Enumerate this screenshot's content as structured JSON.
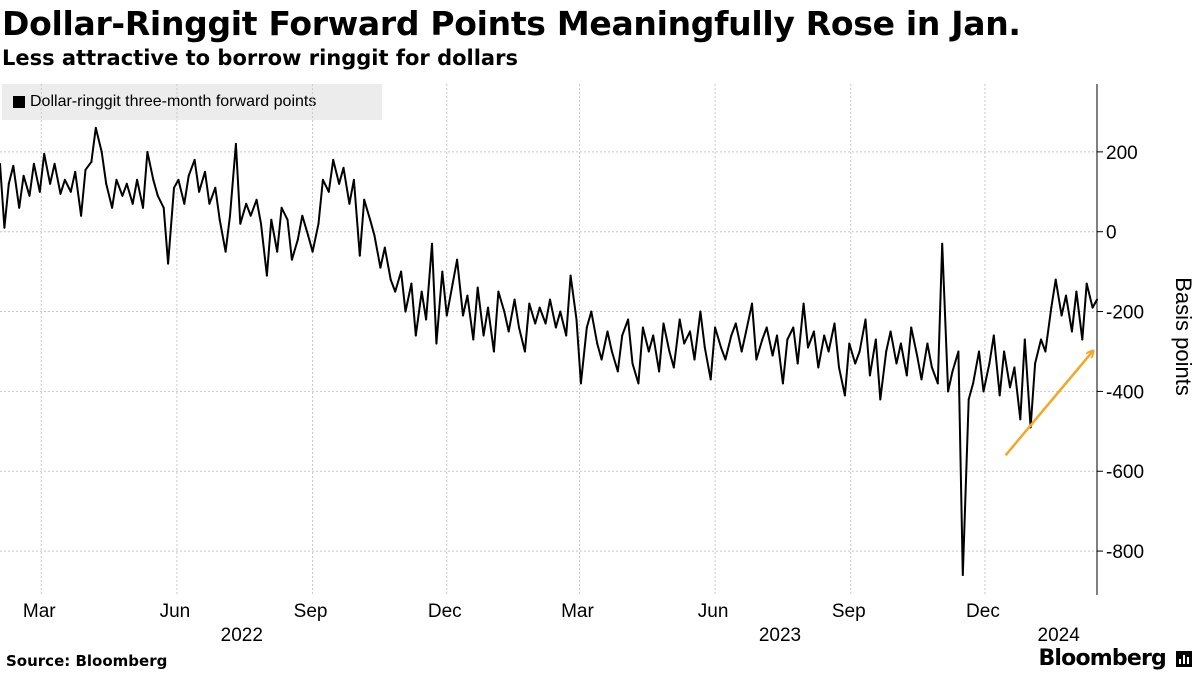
{
  "header": {
    "title": "Dollar-Ringgit Forward Points Meaningfully Rose in Jan.",
    "subtitle": "Less attractive to borrow ringgit for dollars"
  },
  "footer": {
    "source": "Source: Bloomberg",
    "brand": "Bloomberg"
  },
  "chart_data": {
    "type": "line",
    "title": "Dollar-Ringgit Forward Points Meaningfully Rose in Jan.",
    "subtitle": "Less attractive to borrow ringgit for dollars",
    "legend": {
      "placement": "top-left",
      "entries": [
        "Dollar-ringgit three-month forward points"
      ]
    },
    "ylabel": "Basis points",
    "ylim": [
      -910,
      370
    ],
    "yticks": [
      200,
      0,
      -200,
      -400,
      -600,
      -800
    ],
    "ytick_labels": [
      "200",
      "0",
      "-200",
      "-400",
      "-600",
      "-800"
    ],
    "y_axis_side": "right",
    "grid": true,
    "xlim": [
      "2022-02-01",
      "2024-02-15"
    ],
    "xticks": [
      {
        "date": "2022-03-01",
        "label": "Mar"
      },
      {
        "date": "2022-06-01",
        "label": "Jun"
      },
      {
        "date": "2022-09-01",
        "label": "Sep"
      },
      {
        "date": "2022-12-01",
        "label": "Dec"
      },
      {
        "date": "2023-03-01",
        "label": "Mar"
      },
      {
        "date": "2023-06-01",
        "label": "Jun"
      },
      {
        "date": "2023-09-01",
        "label": "Sep"
      },
      {
        "date": "2023-12-01",
        "label": "Dec"
      }
    ],
    "year_labels": [
      {
        "date": "2022-07-15",
        "label": "2022"
      },
      {
        "date": "2023-07-15",
        "label": "2023"
      },
      {
        "date": "2024-01-20",
        "label": "2024"
      }
    ],
    "annotations": [
      {
        "type": "arrow",
        "color": "#f5a623",
        "from": {
          "date": "2023-12-15",
          "value": -560
        },
        "to": {
          "date": "2024-02-12",
          "value": -300
        }
      }
    ],
    "series": [
      {
        "name": "Dollar-ringgit three-month forward points",
        "color": "#000000",
        "points": [
          [
            "2022-02-01",
            170
          ],
          [
            "2022-02-04",
            10
          ],
          [
            "2022-02-07",
            120
          ],
          [
            "2022-02-10",
            165
          ],
          [
            "2022-02-14",
            60
          ],
          [
            "2022-02-17",
            140
          ],
          [
            "2022-02-21",
            90
          ],
          [
            "2022-02-24",
            170
          ],
          [
            "2022-02-28",
            100
          ],
          [
            "2022-03-03",
            195
          ],
          [
            "2022-03-07",
            120
          ],
          [
            "2022-03-10",
            170
          ],
          [
            "2022-03-14",
            95
          ],
          [
            "2022-03-17",
            130
          ],
          [
            "2022-03-21",
            100
          ],
          [
            "2022-03-24",
            150
          ],
          [
            "2022-03-28",
            40
          ],
          [
            "2022-03-31",
            155
          ],
          [
            "2022-04-04",
            175
          ],
          [
            "2022-04-07",
            260
          ],
          [
            "2022-04-11",
            200
          ],
          [
            "2022-04-14",
            120
          ],
          [
            "2022-04-18",
            60
          ],
          [
            "2022-04-21",
            130
          ],
          [
            "2022-04-25",
            90
          ],
          [
            "2022-04-28",
            120
          ],
          [
            "2022-05-02",
            70
          ],
          [
            "2022-05-05",
            130
          ],
          [
            "2022-05-09",
            60
          ],
          [
            "2022-05-12",
            200
          ],
          [
            "2022-05-16",
            130
          ],
          [
            "2022-05-19",
            90
          ],
          [
            "2022-05-23",
            60
          ],
          [
            "2022-05-26",
            -80
          ],
          [
            "2022-05-30",
            110
          ],
          [
            "2022-06-02",
            130
          ],
          [
            "2022-06-06",
            70
          ],
          [
            "2022-06-09",
            140
          ],
          [
            "2022-06-13",
            180
          ],
          [
            "2022-06-16",
            100
          ],
          [
            "2022-06-20",
            150
          ],
          [
            "2022-06-23",
            70
          ],
          [
            "2022-06-27",
            110
          ],
          [
            "2022-06-30",
            30
          ],
          [
            "2022-07-04",
            -50
          ],
          [
            "2022-07-07",
            40
          ],
          [
            "2022-07-11",
            220
          ],
          [
            "2022-07-14",
            20
          ],
          [
            "2022-07-18",
            70
          ],
          [
            "2022-07-21",
            40
          ],
          [
            "2022-07-25",
            80
          ],
          [
            "2022-07-28",
            20
          ],
          [
            "2022-08-01",
            -110
          ],
          [
            "2022-08-04",
            30
          ],
          [
            "2022-08-08",
            -50
          ],
          [
            "2022-08-11",
            60
          ],
          [
            "2022-08-15",
            30
          ],
          [
            "2022-08-18",
            -70
          ],
          [
            "2022-08-22",
            -20
          ],
          [
            "2022-08-25",
            40
          ],
          [
            "2022-08-29",
            -10
          ],
          [
            "2022-09-01",
            -50
          ],
          [
            "2022-09-05",
            20
          ],
          [
            "2022-09-08",
            130
          ],
          [
            "2022-09-12",
            100
          ],
          [
            "2022-09-15",
            180
          ],
          [
            "2022-09-19",
            120
          ],
          [
            "2022-09-22",
            160
          ],
          [
            "2022-09-26",
            70
          ],
          [
            "2022-09-29",
            130
          ],
          [
            "2022-10-03",
            -60
          ],
          [
            "2022-10-06",
            80
          ],
          [
            "2022-10-10",
            30
          ],
          [
            "2022-10-13",
            -10
          ],
          [
            "2022-10-17",
            -90
          ],
          [
            "2022-10-20",
            -40
          ],
          [
            "2022-10-24",
            -120
          ],
          [
            "2022-10-27",
            -150
          ],
          [
            "2022-10-31",
            -100
          ],
          [
            "2022-11-03",
            -200
          ],
          [
            "2022-11-07",
            -130
          ],
          [
            "2022-11-10",
            -260
          ],
          [
            "2022-11-14",
            -150
          ],
          [
            "2022-11-17",
            -220
          ],
          [
            "2022-11-21",
            -30
          ],
          [
            "2022-11-24",
            -280
          ],
          [
            "2022-11-28",
            -100
          ],
          [
            "2022-12-01",
            -210
          ],
          [
            "2022-12-05",
            -130
          ],
          [
            "2022-12-08",
            -70
          ],
          [
            "2022-12-12",
            -210
          ],
          [
            "2022-12-15",
            -160
          ],
          [
            "2022-12-19",
            -270
          ],
          [
            "2022-12-22",
            -140
          ],
          [
            "2022-12-26",
            -260
          ],
          [
            "2022-12-29",
            -190
          ],
          [
            "2023-01-02",
            -300
          ],
          [
            "2023-01-05",
            -150
          ],
          [
            "2023-01-09",
            -200
          ],
          [
            "2023-01-12",
            -250
          ],
          [
            "2023-01-16",
            -170
          ],
          [
            "2023-01-19",
            -240
          ],
          [
            "2023-01-23",
            -300
          ],
          [
            "2023-01-26",
            -180
          ],
          [
            "2023-01-30",
            -230
          ],
          [
            "2023-02-02",
            -190
          ],
          [
            "2023-02-06",
            -230
          ],
          [
            "2023-02-09",
            -170
          ],
          [
            "2023-02-13",
            -240
          ],
          [
            "2023-02-16",
            -200
          ],
          [
            "2023-02-20",
            -260
          ],
          [
            "2023-02-23",
            -110
          ],
          [
            "2023-02-27",
            -220
          ],
          [
            "2023-03-02",
            -380
          ],
          [
            "2023-03-06",
            -240
          ],
          [
            "2023-03-09",
            -200
          ],
          [
            "2023-03-13",
            -280
          ],
          [
            "2023-03-16",
            -320
          ],
          [
            "2023-03-20",
            -250
          ],
          [
            "2023-03-23",
            -300
          ],
          [
            "2023-03-27",
            -350
          ],
          [
            "2023-03-30",
            -260
          ],
          [
            "2023-04-03",
            -220
          ],
          [
            "2023-04-06",
            -330
          ],
          [
            "2023-04-10",
            -380
          ],
          [
            "2023-04-13",
            -240
          ],
          [
            "2023-04-17",
            -300
          ],
          [
            "2023-04-20",
            -260
          ],
          [
            "2023-04-24",
            -350
          ],
          [
            "2023-04-27",
            -230
          ],
          [
            "2023-05-01",
            -300
          ],
          [
            "2023-05-04",
            -340
          ],
          [
            "2023-05-08",
            -220
          ],
          [
            "2023-05-11",
            -280
          ],
          [
            "2023-05-15",
            -250
          ],
          [
            "2023-05-18",
            -320
          ],
          [
            "2023-05-22",
            -200
          ],
          [
            "2023-05-25",
            -290
          ],
          [
            "2023-05-29",
            -370
          ],
          [
            "2023-06-01",
            -240
          ],
          [
            "2023-06-05",
            -290
          ],
          [
            "2023-06-08",
            -320
          ],
          [
            "2023-06-12",
            -260
          ],
          [
            "2023-06-15",
            -230
          ],
          [
            "2023-06-19",
            -300
          ],
          [
            "2023-06-22",
            -250
          ],
          [
            "2023-06-26",
            -180
          ],
          [
            "2023-06-29",
            -320
          ],
          [
            "2023-07-03",
            -270
          ],
          [
            "2023-07-06",
            -240
          ],
          [
            "2023-07-10",
            -310
          ],
          [
            "2023-07-13",
            -260
          ],
          [
            "2023-07-17",
            -380
          ],
          [
            "2023-07-20",
            -270
          ],
          [
            "2023-07-24",
            -240
          ],
          [
            "2023-07-27",
            -330
          ],
          [
            "2023-07-31",
            -180
          ],
          [
            "2023-08-03",
            -290
          ],
          [
            "2023-08-07",
            -250
          ],
          [
            "2023-08-10",
            -340
          ],
          [
            "2023-08-14",
            -260
          ],
          [
            "2023-08-17",
            -300
          ],
          [
            "2023-08-21",
            -230
          ],
          [
            "2023-08-24",
            -340
          ],
          [
            "2023-08-28",
            -410
          ],
          [
            "2023-08-31",
            -280
          ],
          [
            "2023-09-04",
            -330
          ],
          [
            "2023-09-07",
            -300
          ],
          [
            "2023-09-11",
            -220
          ],
          [
            "2023-09-14",
            -360
          ],
          [
            "2023-09-18",
            -270
          ],
          [
            "2023-09-21",
            -420
          ],
          [
            "2023-09-25",
            -300
          ],
          [
            "2023-09-28",
            -250
          ],
          [
            "2023-10-02",
            -330
          ],
          [
            "2023-10-05",
            -280
          ],
          [
            "2023-10-09",
            -360
          ],
          [
            "2023-10-12",
            -240
          ],
          [
            "2023-10-16",
            -310
          ],
          [
            "2023-10-19",
            -370
          ],
          [
            "2023-10-23",
            -280
          ],
          [
            "2023-10-26",
            -340
          ],
          [
            "2023-10-30",
            -380
          ],
          [
            "2023-11-02",
            -30
          ],
          [
            "2023-11-06",
            -400
          ],
          [
            "2023-11-09",
            -350
          ],
          [
            "2023-11-13",
            -300
          ],
          [
            "2023-11-16",
            -860
          ],
          [
            "2023-11-20",
            -420
          ],
          [
            "2023-11-23",
            -380
          ],
          [
            "2023-11-27",
            -300
          ],
          [
            "2023-11-30",
            -400
          ],
          [
            "2023-12-04",
            -330
          ],
          [
            "2023-12-07",
            -260
          ],
          [
            "2023-12-11",
            -410
          ],
          [
            "2023-12-14",
            -300
          ],
          [
            "2023-12-18",
            -390
          ],
          [
            "2023-12-21",
            -340
          ],
          [
            "2023-12-25",
            -470
          ],
          [
            "2023-12-28",
            -270
          ],
          [
            "2024-01-01",
            -490
          ],
          [
            "2024-01-04",
            -330
          ],
          [
            "2024-01-08",
            -270
          ],
          [
            "2024-01-11",
            -300
          ],
          [
            "2024-01-15",
            -190
          ],
          [
            "2024-01-18",
            -120
          ],
          [
            "2024-01-22",
            -210
          ],
          [
            "2024-01-25",
            -160
          ],
          [
            "2024-01-29",
            -250
          ],
          [
            "2024-02-01",
            -150
          ],
          [
            "2024-02-05",
            -270
          ],
          [
            "2024-02-08",
            -130
          ],
          [
            "2024-02-12",
            -190
          ],
          [
            "2024-02-15",
            -170
          ]
        ]
      }
    ]
  }
}
